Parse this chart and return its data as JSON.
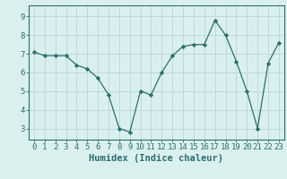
{
  "x": [
    0,
    1,
    2,
    3,
    4,
    5,
    6,
    7,
    8,
    9,
    10,
    11,
    12,
    13,
    14,
    15,
    16,
    17,
    18,
    19,
    20,
    21,
    22,
    23
  ],
  "y": [
    7.1,
    6.9,
    6.9,
    6.9,
    6.4,
    6.2,
    5.7,
    4.8,
    3.0,
    2.8,
    5.0,
    4.8,
    6.0,
    6.9,
    7.4,
    7.5,
    7.5,
    8.8,
    8.0,
    6.6,
    5.0,
    3.0,
    6.5,
    7.6
  ],
  "line_color": "#2d6e6e",
  "marker": "D",
  "marker_size": 2.2,
  "bg_color": "#daf0ef",
  "grid_color": "#c0d8d8",
  "xlabel": "Humidex (Indice chaleur)",
  "ylim": [
    2.4,
    9.6
  ],
  "xlim": [
    -0.5,
    23.5
  ],
  "yticks": [
    3,
    4,
    5,
    6,
    7,
    8,
    9
  ],
  "xticks": [
    0,
    1,
    2,
    3,
    4,
    5,
    6,
    7,
    8,
    9,
    10,
    11,
    12,
    13,
    14,
    15,
    16,
    17,
    18,
    19,
    20,
    21,
    22,
    23
  ],
  "xlabel_fontsize": 7.5,
  "tick_fontsize": 6.5,
  "tick_color": "#2d6e6e",
  "spine_color": "#2d6e6e"
}
